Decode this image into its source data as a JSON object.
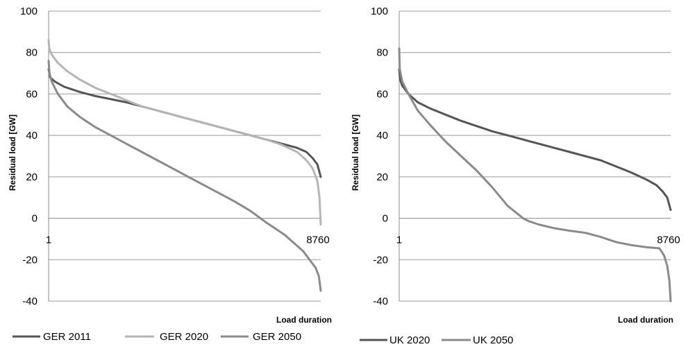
{
  "chart_data": [
    {
      "type": "line",
      "ylabel": "Residual load [GW]",
      "xlabel": "Load duration",
      "xlim": [
        1,
        8760
      ],
      "ylim": [
        -40,
        100
      ],
      "yticks": [
        -40,
        -20,
        0,
        20,
        40,
        60,
        80,
        100
      ],
      "xtick_labels": [
        "1",
        "8760"
      ],
      "grid": true,
      "legend_position": "bottom",
      "series": [
        {
          "name": "GER 2011",
          "color": "#555555",
          "x": [
            1,
            50,
            200,
            500,
            1000,
            1500,
            2000,
            2500,
            3000,
            3500,
            4000,
            4500,
            5000,
            5500,
            6000,
            6500,
            7000,
            7500,
            8000,
            8300,
            8500,
            8650,
            8760
          ],
          "y": [
            72,
            68,
            66,
            63.5,
            61,
            59,
            57.5,
            56,
            54,
            52,
            50,
            48,
            46,
            44,
            42,
            40,
            38,
            36,
            34,
            32,
            29,
            26,
            20
          ]
        },
        {
          "name": "GER 2020",
          "color": "#b5b5b5",
          "x": [
            1,
            20,
            100,
            300,
            600,
            1000,
            1500,
            2000,
            2500,
            3000,
            3500,
            4000,
            4500,
            5000,
            5500,
            6000,
            6500,
            7000,
            7500,
            8000,
            8300,
            8500,
            8650,
            8720,
            8760
          ],
          "y": [
            86,
            82,
            79,
            75,
            71,
            67,
            63,
            60,
            57,
            54,
            52,
            50,
            48,
            46,
            44,
            42,
            40,
            38,
            35.5,
            32,
            28,
            24,
            18,
            10,
            -3
          ]
        },
        {
          "name": "GER 2050",
          "color": "#8a8a8a",
          "x": [
            1,
            30,
            100,
            300,
            600,
            1000,
            1500,
            2000,
            2500,
            3000,
            3500,
            4000,
            4500,
            5000,
            5500,
            6000,
            6500,
            7000,
            7300,
            7600,
            7900,
            8200,
            8400,
            8600,
            8700,
            8760
          ],
          "y": [
            76,
            70,
            66,
            60,
            54,
            49,
            44,
            40,
            36,
            32,
            28,
            24,
            20,
            16,
            12,
            8,
            3.5,
            -2,
            -5,
            -8,
            -12,
            -16,
            -20,
            -24,
            -28,
            -35
          ]
        }
      ]
    },
    {
      "type": "line",
      "ylabel": "Residual load [GW]",
      "xlabel": "Load duration",
      "xlim": [
        1,
        8760
      ],
      "ylim": [
        -40,
        100
      ],
      "yticks": [
        -40,
        -20,
        0,
        20,
        40,
        60,
        80,
        100
      ],
      "xtick_labels": [
        "1",
        "8760"
      ],
      "grid": true,
      "legend_position": "bottom",
      "series": [
        {
          "name": "UK 2020",
          "color": "#555555",
          "x": [
            1,
            30,
            100,
            300,
            600,
            1000,
            1500,
            2000,
            2500,
            3000,
            3500,
            4000,
            4500,
            5000,
            5500,
            6000,
            6500,
            7000,
            7500,
            8000,
            8300,
            8500,
            8650,
            8760
          ],
          "y": [
            72,
            67,
            64,
            60,
            56,
            53,
            50,
            47,
            44.5,
            42,
            40,
            38,
            36,
            34,
            32,
            30,
            28,
            25,
            22,
            18.5,
            16,
            13,
            10,
            4
          ]
        },
        {
          "name": "UK 2050",
          "color": "#8a8a8a",
          "x": [
            1,
            20,
            100,
            300,
            600,
            1000,
            1500,
            2000,
            2500,
            3000,
            3500,
            4000,
            4200,
            4500,
            5000,
            5500,
            6000,
            6500,
            7000,
            7500,
            8000,
            8400,
            8550,
            8650,
            8720,
            8760
          ],
          "y": [
            82,
            72,
            66,
            60,
            52,
            45,
            37,
            30,
            23,
            15,
            6,
            0,
            -1.5,
            -3,
            -4.8,
            -6,
            -7,
            -9,
            -11.5,
            -13,
            -14,
            -14.5,
            -18,
            -23,
            -30,
            -40
          ]
        }
      ]
    }
  ]
}
